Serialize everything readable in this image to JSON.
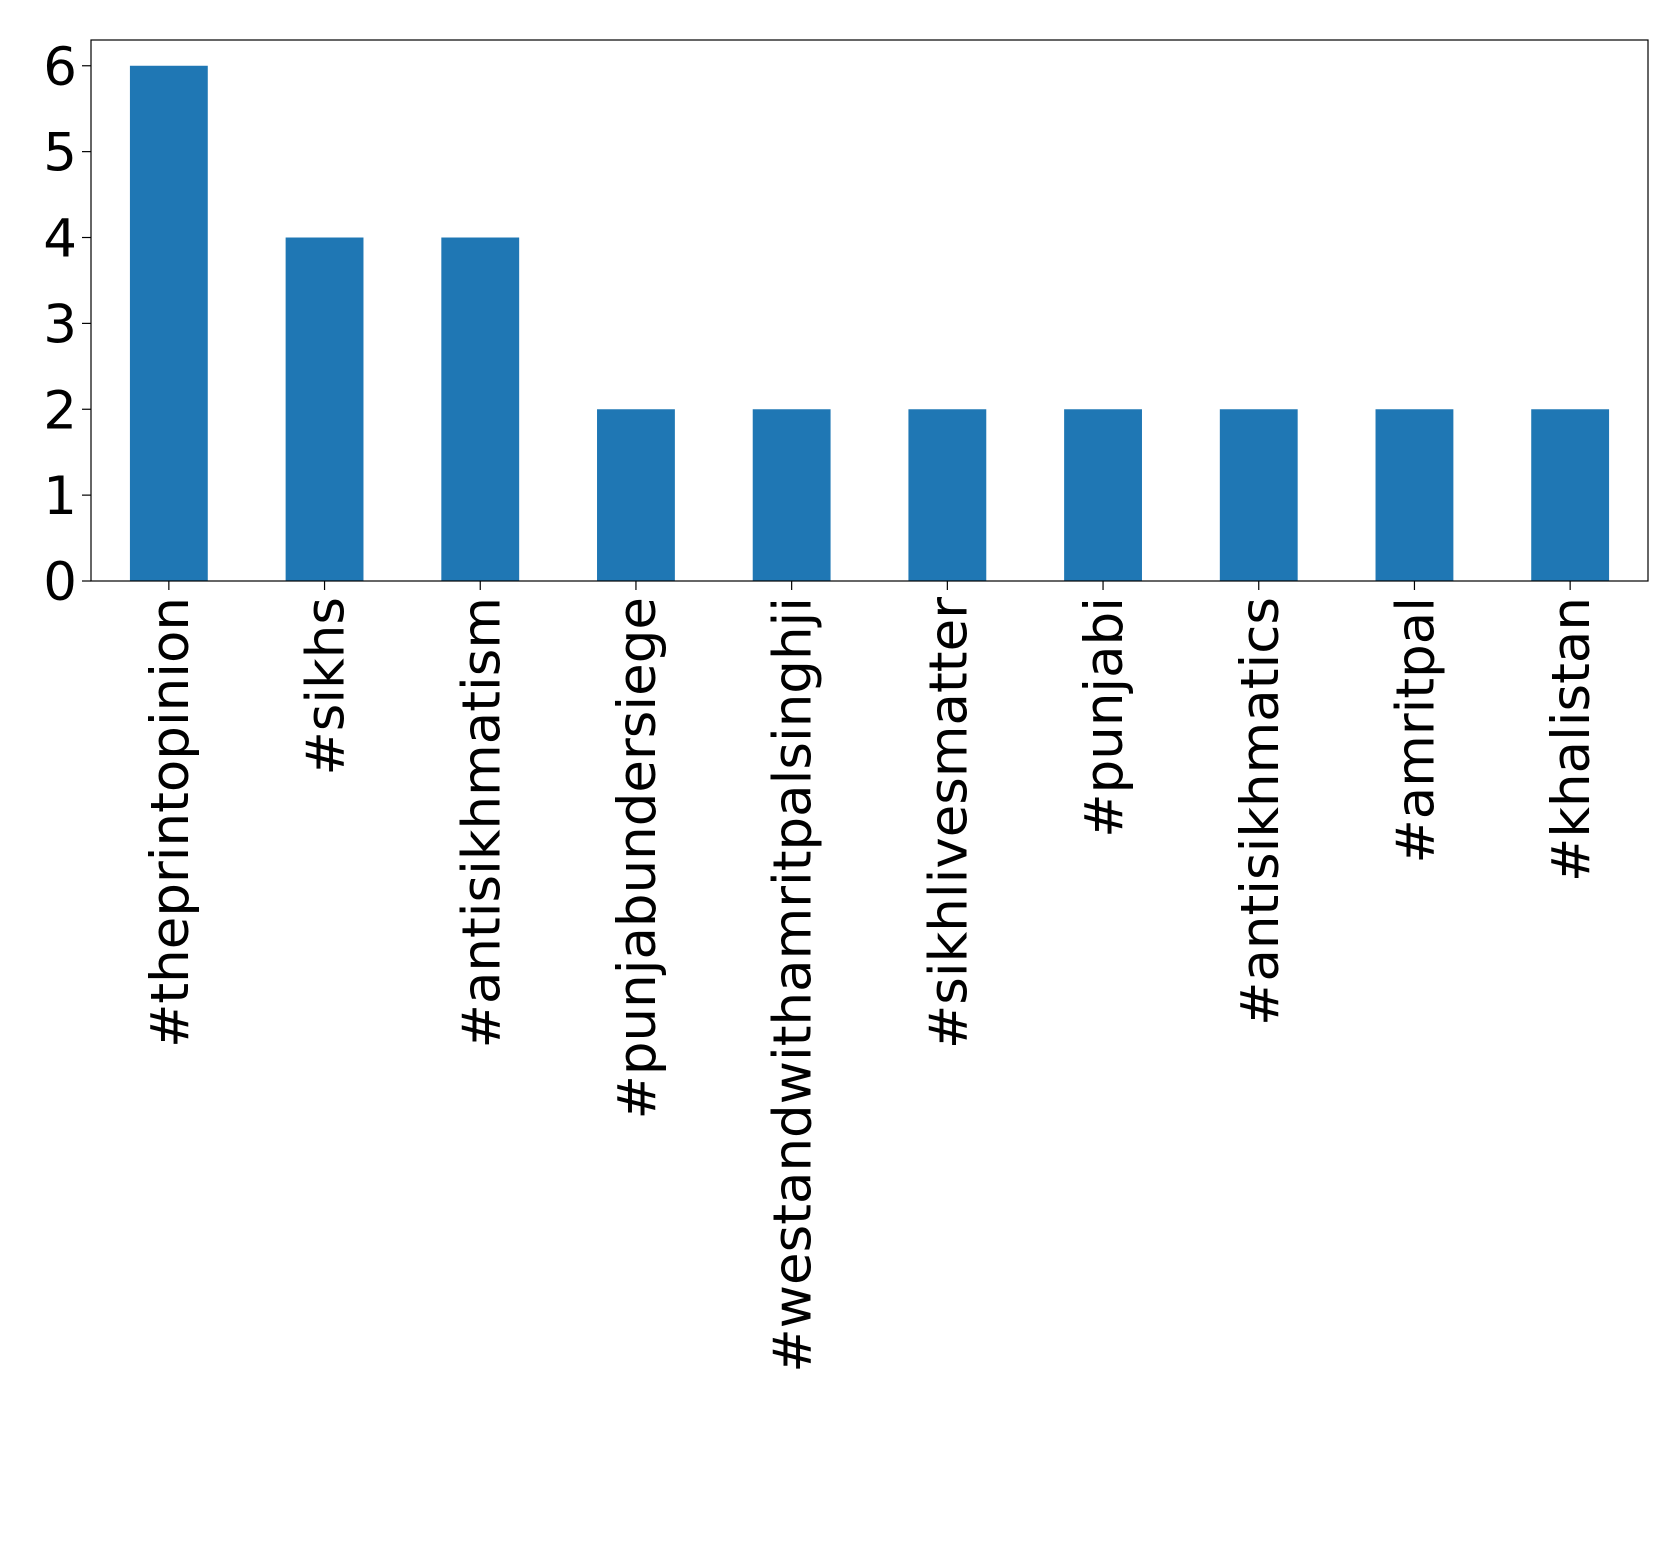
{
  "chart_data": {
    "type": "bar",
    "categories": [
      "#theprintopinion",
      "#sikhs",
      "#antisikhmatism",
      "#punjabundersiege",
      "#westandwithamritpalsinghji",
      "#sikhlivesmatter",
      "#punjabi",
      "#antisikhmatics",
      "#amritpal",
      "#khalistan"
    ],
    "values": [
      6,
      4,
      4,
      2,
      2,
      2,
      2,
      2,
      2,
      2
    ],
    "color": "#1f77b4",
    "ylim": [
      0,
      6.3
    ],
    "yticks": [
      0,
      1,
      2,
      3,
      4,
      5,
      6
    ],
    "grid": false
  }
}
